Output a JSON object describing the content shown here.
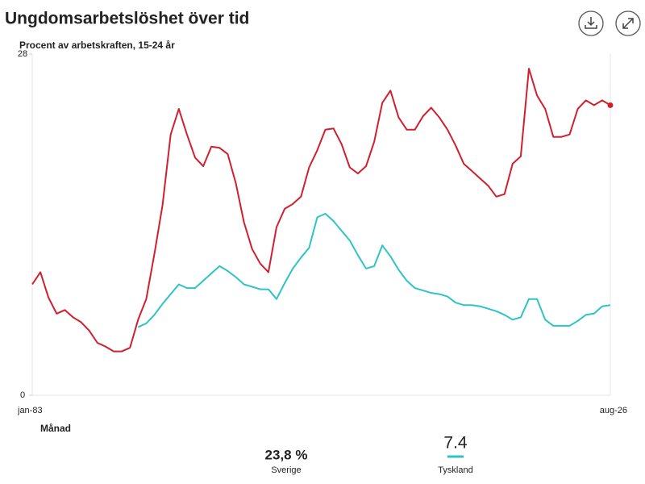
{
  "chart_data": {
    "type": "line",
    "title": "Ungdomsarbetslöshet över tid",
    "subtitle": "Procent av arbetskraften, 15-24 år",
    "x_label": "Månad",
    "categories": [
      "jan-83",
      null,
      null,
      null,
      null,
      null,
      null,
      null,
      null,
      null,
      null,
      null,
      null,
      null,
      null,
      null,
      null,
      null,
      null,
      null,
      null,
      null,
      null,
      null,
      null,
      null,
      null,
      null,
      null,
      null,
      null,
      null,
      null,
      null,
      null,
      null,
      null,
      null,
      null,
      null,
      null,
      null,
      null,
      null,
      null,
      null,
      null,
      null,
      null,
      null,
      null,
      null,
      null,
      null,
      null,
      null,
      null,
      null,
      null,
      null,
      null,
      null,
      null,
      null,
      null,
      null,
      null,
      null,
      null,
      null,
      null,
      "aug-26"
    ],
    "ylim": [
      0,
      28
    ],
    "yticks": [
      0,
      28
    ],
    "series": [
      {
        "name": "Sverige",
        "color": "#d0202e",
        "latest_label": "23,8 %",
        "values": [
          9.1,
          10.1,
          8.0,
          6.7,
          7.0,
          6.4,
          6.0,
          5.3,
          4.3,
          4.0,
          3.6,
          3.6,
          3.9,
          6.2,
          7.9,
          11.6,
          15.6,
          21.4,
          23.5,
          21.4,
          19.5,
          18.8,
          20.4,
          20.3,
          19.8,
          17.4,
          14.2,
          12.0,
          10.8,
          10.1,
          13.8,
          15.3,
          15.7,
          16.3,
          18.7,
          20.1,
          21.8,
          21.9,
          20.6,
          18.7,
          18.2,
          18.8,
          20.8,
          24.0,
          25.0,
          22.8,
          21.8,
          21.8,
          22.9,
          23.6,
          22.8,
          21.8,
          20.5,
          19.0,
          18.4,
          17.8,
          17.2,
          16.3,
          16.5,
          19.0,
          19.6,
          26.8,
          24.6,
          23.5,
          21.2,
          21.2,
          21.4,
          23.5,
          24.2,
          23.8,
          24.2,
          23.8
        ]
      },
      {
        "name": "Tyskland",
        "color": "#2ec4c6",
        "latest_label": "7.4",
        "values": [
          null,
          null,
          null,
          null,
          null,
          null,
          null,
          null,
          null,
          null,
          null,
          null,
          null,
          5.6,
          5.9,
          6.6,
          7.5,
          8.3,
          9.1,
          8.8,
          8.8,
          9.4,
          10.0,
          10.6,
          10.2,
          9.7,
          9.1,
          8.9,
          8.7,
          8.7,
          7.9,
          9.2,
          10.4,
          11.3,
          12.1,
          14.6,
          14.9,
          14.3,
          13.5,
          12.7,
          11.5,
          10.4,
          10.6,
          12.3,
          11.4,
          10.3,
          9.4,
          8.8,
          8.6,
          8.4,
          8.3,
          8.1,
          7.6,
          7.4,
          7.4,
          7.3,
          7.1,
          6.9,
          6.6,
          6.2,
          6.4,
          7.9,
          7.9,
          6.2,
          5.7,
          5.7,
          5.7,
          6.1,
          6.6,
          6.7,
          7.3,
          7.4
        ]
      }
    ]
  }
}
